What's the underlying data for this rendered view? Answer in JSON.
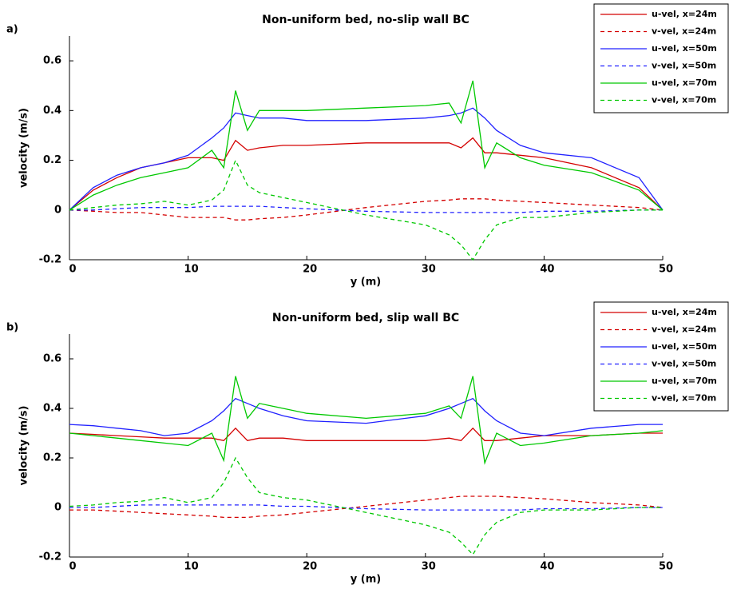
{
  "chart_data": [
    {
      "type": "line",
      "panel_label": "a)",
      "title": "Non-uniform bed, no-slip wall BC",
      "xlabel": "y (m)",
      "ylabel": "velocity (m/s)",
      "xlim": [
        0,
        50
      ],
      "xticks": [
        0,
        10,
        20,
        30,
        40,
        50
      ],
      "ylim": [
        -0.2,
        0.7
      ],
      "yticks": [
        -0.2,
        0,
        0.2,
        0.4,
        0.6
      ],
      "legend": "upper right",
      "x": [
        0,
        2,
        4,
        6,
        8,
        10,
        12,
        13,
        14,
        15,
        16,
        18,
        20,
        25,
        30,
        32,
        33,
        34,
        35,
        36,
        38,
        40,
        44,
        48,
        50
      ],
      "series": [
        {
          "name": "u-vel, x=24m",
          "color": "#d40000",
          "linestyle": "solid",
          "values": [
            0,
            0.08,
            0.13,
            0.17,
            0.19,
            0.21,
            0.21,
            0.2,
            0.28,
            0.24,
            0.25,
            0.26,
            0.26,
            0.27,
            0.27,
            0.27,
            0.25,
            0.29,
            0.23,
            0.23,
            0.22,
            0.21,
            0.17,
            0.09,
            0
          ]
        },
        {
          "name": "v-vel, x=24m",
          "color": "#d40000",
          "linestyle": "dashed",
          "values": [
            0,
            -0.005,
            -0.01,
            -0.01,
            -0.02,
            -0.03,
            -0.03,
            -0.03,
            -0.04,
            -0.04,
            -0.035,
            -0.03,
            -0.02,
            0.01,
            0.035,
            0.04,
            0.045,
            0.045,
            0.045,
            0.04,
            0.035,
            0.03,
            0.02,
            0.01,
            0
          ]
        },
        {
          "name": "u-vel, x=50m",
          "color": "#2020ff",
          "linestyle": "solid",
          "values": [
            0,
            0.09,
            0.14,
            0.17,
            0.19,
            0.22,
            0.29,
            0.33,
            0.39,
            0.38,
            0.37,
            0.37,
            0.36,
            0.36,
            0.37,
            0.38,
            0.39,
            0.41,
            0.37,
            0.32,
            0.26,
            0.23,
            0.21,
            0.13,
            0
          ]
        },
        {
          "name": "v-vel, x=50m",
          "color": "#2020ff",
          "linestyle": "dashed",
          "values": [
            0,
            0,
            0.005,
            0.01,
            0.01,
            0.01,
            0.015,
            0.015,
            0.015,
            0.015,
            0.015,
            0.01,
            0.005,
            -0.005,
            -0.01,
            -0.01,
            -0.01,
            -0.01,
            -0.01,
            -0.01,
            -0.01,
            -0.005,
            -0.005,
            0,
            0
          ]
        },
        {
          "name": "u-vel, x=70m",
          "color": "#00c800",
          "linestyle": "solid",
          "values": [
            0,
            0.06,
            0.1,
            0.13,
            0.15,
            0.17,
            0.24,
            0.17,
            0.48,
            0.32,
            0.4,
            0.4,
            0.4,
            0.41,
            0.42,
            0.43,
            0.35,
            0.52,
            0.17,
            0.27,
            0.21,
            0.18,
            0.15,
            0.08,
            0
          ]
        },
        {
          "name": "v-vel, x=70m",
          "color": "#00c800",
          "linestyle": "dashed",
          "values": [
            0,
            0.01,
            0.02,
            0.025,
            0.035,
            0.02,
            0.04,
            0.08,
            0.2,
            0.1,
            0.07,
            0.05,
            0.03,
            -0.02,
            -0.06,
            -0.1,
            -0.14,
            -0.2,
            -0.12,
            -0.06,
            -0.03,
            -0.03,
            -0.01,
            0,
            0
          ]
        }
      ]
    },
    {
      "type": "line",
      "panel_label": "b)",
      "title": "Non-uniform bed, slip wall BC",
      "xlabel": "y (m)",
      "ylabel": "velocity (m/s)",
      "xlim": [
        0,
        50
      ],
      "xticks": [
        0,
        10,
        20,
        30,
        40,
        50
      ],
      "ylim": [
        -0.2,
        0.7
      ],
      "yticks": [
        -0.2,
        0,
        0.2,
        0.4,
        0.6
      ],
      "legend": "upper right",
      "x": [
        0,
        2,
        4,
        6,
        8,
        10,
        12,
        13,
        14,
        15,
        16,
        18,
        20,
        25,
        30,
        32,
        33,
        34,
        35,
        36,
        38,
        40,
        44,
        48,
        50
      ],
      "series": [
        {
          "name": "u-vel, x=24m",
          "color": "#d40000",
          "linestyle": "solid",
          "values": [
            0.3,
            0.295,
            0.29,
            0.285,
            0.28,
            0.28,
            0.28,
            0.27,
            0.32,
            0.27,
            0.28,
            0.28,
            0.27,
            0.27,
            0.27,
            0.28,
            0.27,
            0.32,
            0.27,
            0.27,
            0.28,
            0.29,
            0.29,
            0.3,
            0.3
          ]
        },
        {
          "name": "v-vel, x=24m",
          "color": "#d40000",
          "linestyle": "dashed",
          "values": [
            -0.01,
            -0.01,
            -0.015,
            -0.02,
            -0.025,
            -0.03,
            -0.035,
            -0.04,
            -0.04,
            -0.04,
            -0.035,
            -0.03,
            -0.02,
            0.005,
            0.03,
            0.04,
            0.045,
            0.045,
            0.045,
            0.045,
            0.04,
            0.035,
            0.02,
            0.01,
            0
          ]
        },
        {
          "name": "u-vel, x=50m",
          "color": "#2020ff",
          "linestyle": "solid",
          "values": [
            0.335,
            0.33,
            0.32,
            0.31,
            0.29,
            0.3,
            0.35,
            0.39,
            0.44,
            0.42,
            0.4,
            0.37,
            0.35,
            0.34,
            0.37,
            0.4,
            0.42,
            0.44,
            0.39,
            0.35,
            0.3,
            0.29,
            0.32,
            0.335,
            0.335
          ]
        },
        {
          "name": "v-vel, x=50m",
          "color": "#2020ff",
          "linestyle": "dashed",
          "values": [
            0,
            0,
            0.005,
            0.01,
            0.01,
            0.01,
            0.01,
            0.01,
            0.01,
            0.01,
            0.01,
            0.005,
            0.005,
            -0.005,
            -0.01,
            -0.01,
            -0.01,
            -0.01,
            -0.01,
            -0.01,
            -0.01,
            -0.005,
            -0.005,
            0,
            0
          ]
        },
        {
          "name": "u-vel, x=70m",
          "color": "#00c800",
          "linestyle": "solid",
          "values": [
            0.3,
            0.29,
            0.28,
            0.27,
            0.26,
            0.25,
            0.3,
            0.19,
            0.53,
            0.36,
            0.42,
            0.4,
            0.38,
            0.36,
            0.38,
            0.41,
            0.36,
            0.53,
            0.18,
            0.3,
            0.25,
            0.26,
            0.29,
            0.3,
            0.31
          ]
        },
        {
          "name": "v-vel, x=70m",
          "color": "#00c800",
          "linestyle": "dashed",
          "values": [
            0.005,
            0.01,
            0.02,
            0.025,
            0.04,
            0.02,
            0.04,
            0.1,
            0.2,
            0.12,
            0.06,
            0.04,
            0.03,
            -0.02,
            -0.07,
            -0.1,
            -0.14,
            -0.19,
            -0.11,
            -0.06,
            -0.02,
            -0.01,
            -0.01,
            0,
            0
          ]
        }
      ]
    }
  ]
}
